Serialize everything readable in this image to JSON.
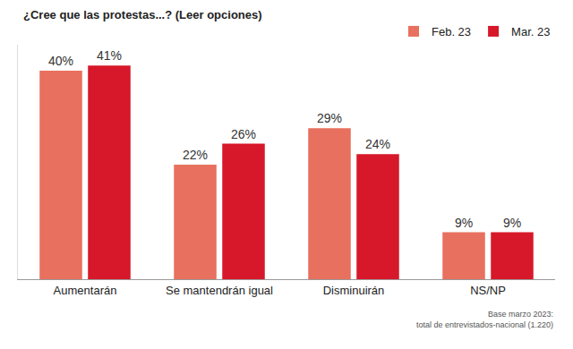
{
  "chart_data": {
    "type": "bar",
    "title": "¿Cree que las protestas...? (Leer opciones)",
    "categories": [
      "Aumentarán",
      "Se mantendrán igual",
      "Disminuirán",
      "NS/NP"
    ],
    "series": [
      {
        "name": "Feb. 23",
        "color": "#e8705e",
        "values": [
          40,
          22,
          29,
          9
        ],
        "value_labels": [
          "40%",
          "22%",
          "29%",
          "9%"
        ]
      },
      {
        "name": "Mar. 23",
        "color": "#d7182a",
        "values": [
          41,
          26,
          24,
          9
        ],
        "value_labels": [
          "41%",
          "26%",
          "24%",
          "9%"
        ]
      }
    ],
    "ylim": [
      0,
      45
    ],
    "tick_labels": "x",
    "grid": false,
    "legend": "top right",
    "data_labels": true,
    "footnote": [
      "Base marzo 2023:",
      "total de entrevistados-nacional (1.220)"
    ]
  }
}
